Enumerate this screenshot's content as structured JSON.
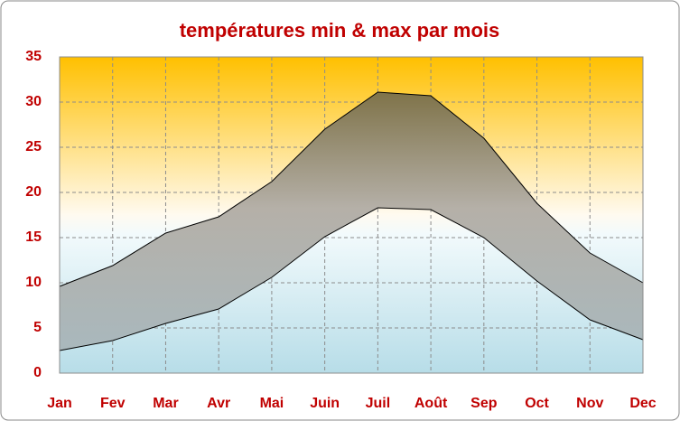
{
  "chart_data": {
    "type": "range_area",
    "title": "températures min & max par mois",
    "categories": [
      "Jan",
      "Fev",
      "Mar",
      "Avr",
      "Mai",
      "Juin",
      "Juil",
      "Août",
      "Sep",
      "Oct",
      "Nov",
      "Dec"
    ],
    "series": [
      {
        "values": [
          2.5,
          3.6,
          5.5,
          7.1,
          10.6,
          15.1,
          18.3,
          18.1,
          15.0,
          10.2,
          5.9,
          3.7
        ],
        "color": "#000000"
      },
      {
        "values": [
          9.6,
          11.9,
          15.5,
          17.3,
          21.2,
          27.0,
          31.1,
          30.7,
          26.0,
          18.8,
          13.3,
          10.0
        ],
        "color": "#000000"
      }
    ],
    "ylim": [
      0,
      35
    ],
    "yticks": [
      0,
      5,
      10,
      15,
      20,
      25,
      30,
      35
    ],
    "grid": true
  }
}
